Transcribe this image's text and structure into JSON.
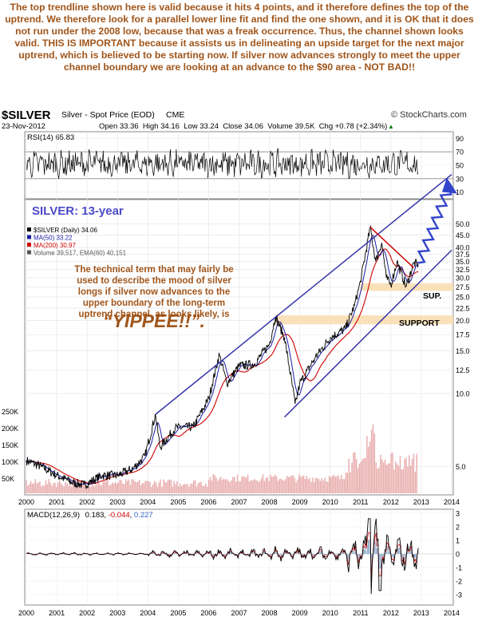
{
  "intro_text": "The top trendline shown here is valid because it hits 4 points, and it therefore defines the top of the uptrend. We therefore look for a parallel lower line fit and find the one shown, and it is OK that it does not run under the 2008 low, because that was a freak occurrence. Thus, the channel shown looks valid. THIS IS IMPORTANT because it assists us in delineating an upside target for the next major uptrend, which is believed to be starting now. If silver now advances strongly to meet the upper channel boundary we are looking at an advance to the $90 area - NOT BAD!!",
  "header": {
    "symbol": "$SILVER",
    "name": "Silver - Spot Price (EOD)",
    "exchange": "CME",
    "watermark": "© StockCharts.com",
    "date": "23-Nov-2012",
    "ohlc": "Open 33.36  High 34.16  Low 33.24  Close 34.06  Volume 39.5K  Chg +0.78 (+2.34%)",
    "chg_arrow": "▲"
  },
  "rsi": {
    "label": "RSI(14) 65.83",
    "levels": [
      "90",
      "70",
      "50",
      "30",
      "10"
    ]
  },
  "price_panel": {
    "title": "SILVER: 13-year",
    "legend": [
      {
        "text": "$SILVER (Daily) 34.06",
        "color": "#000000"
      },
      {
        "text": "MA(50) 33.22",
        "color": "#1a1aa6"
      },
      {
        "text": "MA(200) 30.97",
        "color": "#cc0000"
      },
      {
        "text": "Volume 39,517, EMA(60) 40,151",
        "color": "#555555"
      }
    ],
    "comment": "The technical term that may fairly be used to describe the mood of silver longs if silver now advances to the upper boundary of the long-term uptrend channel, as looks likely, is",
    "yippee": "“YIPPEE!!”.",
    "sup_label": "SUP.",
    "support_label": "SUPPORT",
    "y_ticks": [
      "50.0",
      "45.0",
      "40.0",
      "37.5",
      "35.0",
      "32.5",
      "30.0",
      "27.5",
      "25.0",
      "22.5",
      "20.0",
      "17.5",
      "15.0",
      "12.5",
      "10.0",
      "5.0"
    ],
    "volume_ticks": [
      "250K",
      "200K",
      "150K",
      "100K",
      "50K"
    ]
  },
  "years": [
    "2000",
    "2001",
    "2002",
    "2003",
    "2004",
    "2005",
    "2006",
    "2007",
    "2008",
    "2009",
    "2010",
    "2011",
    "2012",
    "2013",
    "2014"
  ],
  "macd": {
    "label": "MACD(12,26,9)",
    "val1": "0.183",
    "val2": "-0.044",
    "val3": "0.227",
    "ticks": [
      "3",
      "2",
      "1",
      "0",
      "-1",
      "-2",
      "-3"
    ]
  },
  "chart_data": {
    "type": "line",
    "title": "SILVER: 13-year",
    "series": [
      {
        "name": "$SILVER (Daily)",
        "x": [
          2000.0,
          2000.5,
          2001.0,
          2001.5,
          2001.9,
          2002.5,
          2003.0,
          2003.5,
          2003.9,
          2004.25,
          2004.4,
          2004.9,
          2005.5,
          2006.0,
          2006.35,
          2006.6,
          2007.0,
          2007.5,
          2008.0,
          2008.2,
          2008.5,
          2008.85,
          2009.0,
          2009.5,
          2010.0,
          2010.5,
          2010.8,
          2011.0,
          2011.32,
          2011.5,
          2011.7,
          2011.85,
          2012.0,
          2012.2,
          2012.5,
          2012.75,
          2012.9
        ],
        "values": [
          5.3,
          5.0,
          4.6,
          4.3,
          4.2,
          4.6,
          4.6,
          4.9,
          5.5,
          8.2,
          6.0,
          7.2,
          7.3,
          9.5,
          14.5,
          11.0,
          13.0,
          13.2,
          16.0,
          20.8,
          17.0,
          9.0,
          11.0,
          14.0,
          17.0,
          18.5,
          23.0,
          29.0,
          48.5,
          35.0,
          42.0,
          30.0,
          28.0,
          35.0,
          27.5,
          34.5,
          34.06
        ]
      }
    ],
    "xlabel": "",
    "ylabel": "",
    "ylim": [
      4,
      55
    ],
    "y_scale": "log",
    "xlim": [
      2000,
      2014
    ],
    "trend_channel": {
      "upper": {
        "x": [
          2004.25,
          2014
        ],
        "values": [
          8.2,
          80.0
        ]
      },
      "lower": {
        "x": [
          2008.5,
          2014
        ],
        "values": [
          8.0,
          39.0
        ]
      },
      "resistance_line": {
        "x": [
          2011.32,
          2012.75
        ],
        "values": [
          48.5,
          33.0
        ]
      },
      "projection": {
        "x": [
          2012.9,
          2013.92
        ],
        "values": [
          34.06,
          72.0
        ]
      }
    },
    "support_bands": [
      {
        "label": "SUP.",
        "range": [
          26.5,
          28.5
        ]
      },
      {
        "label": "SUPPORT",
        "range": [
          19.3,
          21.0
        ]
      }
    ]
  }
}
